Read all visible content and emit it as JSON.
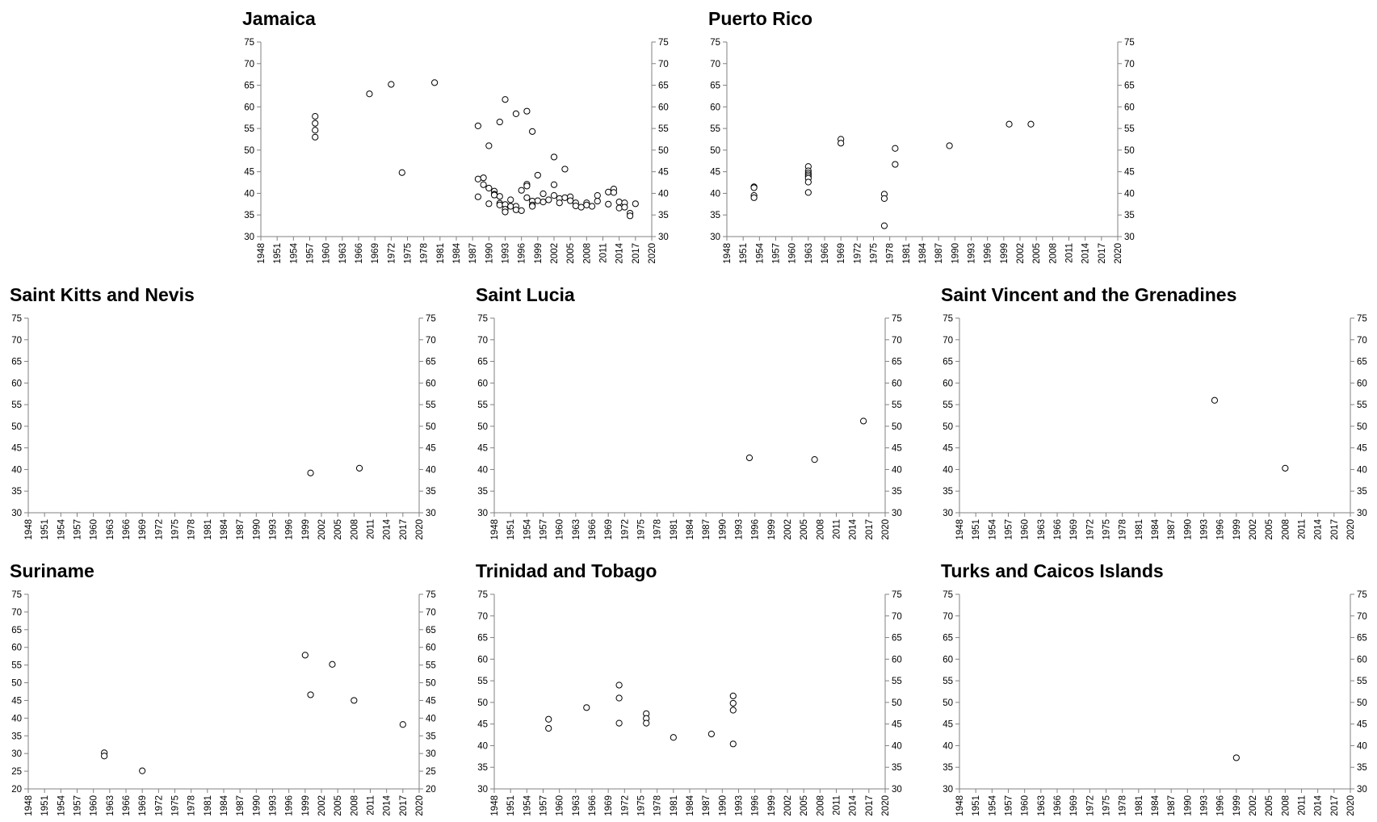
{
  "chart_data": [
    {
      "type": "scatter",
      "title": "Jamaica",
      "xlim": [
        1948,
        2020
      ],
      "x_ticks": [
        "1948",
        "1951",
        "1954",
        "1957",
        "1960",
        "1963",
        "1966",
        "1969",
        "1972",
        "1975",
        "1978",
        "1981",
        "1984",
        "1987",
        "1990",
        "1993",
        "1996",
        "1999",
        "2002",
        "2005",
        "2008",
        "2011",
        "2014",
        "2017",
        "2020"
      ],
      "ylim": [
        30,
        75
      ],
      "y_ticks": [
        "30",
        "35",
        "40",
        "45",
        "50",
        "55",
        "60",
        "65",
        "70",
        "75"
      ],
      "grid": false,
      "legend": "none",
      "marker": "hollow-circle",
      "series": [
        {
          "points": [
            [
              1958,
              57.8
            ],
            [
              1958,
              56.2
            ],
            [
              1958,
              54.6
            ],
            [
              1958,
              53.0
            ],
            [
              1968,
              63.0
            ],
            [
              1972,
              65.2
            ],
            [
              1974,
              44.8
            ],
            [
              1980,
              65.6
            ],
            [
              1988,
              55.6
            ],
            [
              1988,
              43.3
            ],
            [
              1988,
              39.2
            ],
            [
              1989,
              43.6
            ],
            [
              1989,
              42.0
            ],
            [
              1990,
              51.0
            ],
            [
              1990,
              41.2
            ],
            [
              1990,
              37.6
            ],
            [
              1991,
              40.5
            ],
            [
              1991,
              39.8
            ],
            [
              1991,
              39.6
            ],
            [
              1992,
              56.5
            ],
            [
              1992,
              39.3
            ],
            [
              1992,
              37.7
            ],
            [
              1992,
              37.3
            ],
            [
              1993,
              61.7
            ],
            [
              1993,
              37.4
            ],
            [
              1993,
              36.3
            ],
            [
              1993,
              35.7
            ],
            [
              1994,
              38.5
            ],
            [
              1994,
              37.0
            ],
            [
              1995,
              58.4
            ],
            [
              1995,
              37.0
            ],
            [
              1995,
              36.2
            ],
            [
              1996,
              40.7
            ],
            [
              1996,
              36.0
            ],
            [
              1997,
              59.0
            ],
            [
              1997,
              42.1
            ],
            [
              1997,
              41.7
            ],
            [
              1997,
              39.0
            ],
            [
              1998,
              54.3
            ],
            [
              1998,
              38.2
            ],
            [
              1998,
              37.3
            ],
            [
              1998,
              37.0
            ],
            [
              1999,
              44.2
            ],
            [
              1999,
              38.3
            ],
            [
              2000,
              39.9
            ],
            [
              2000,
              38.0
            ],
            [
              2001,
              38.5
            ],
            [
              2002,
              48.4
            ],
            [
              2002,
              42.0
            ],
            [
              2002,
              39.5
            ],
            [
              2003,
              38.8
            ],
            [
              2003,
              37.8
            ],
            [
              2004,
              45.6
            ],
            [
              2004,
              39.0
            ],
            [
              2005,
              39.2
            ],
            [
              2005,
              38.3
            ],
            [
              2006,
              37.8
            ],
            [
              2006,
              37.1
            ],
            [
              2007,
              36.8
            ],
            [
              2008,
              37.8
            ],
            [
              2008,
              37.3
            ],
            [
              2009,
              37.0
            ],
            [
              2010,
              39.5
            ],
            [
              2010,
              38.2
            ],
            [
              2012,
              40.3
            ],
            [
              2012,
              37.5
            ],
            [
              2013,
              41.0
            ],
            [
              2013,
              40.2
            ],
            [
              2014,
              38.0
            ],
            [
              2014,
              36.6
            ],
            [
              2015,
              37.8
            ],
            [
              2015,
              36.8
            ],
            [
              2016,
              35.4
            ],
            [
              2016,
              34.8
            ],
            [
              2017,
              37.6
            ]
          ]
        }
      ]
    },
    {
      "type": "scatter",
      "title": "Puerto Rico",
      "xlim": [
        1948,
        2020
      ],
      "x_ticks": [
        "1948",
        "1951",
        "1954",
        "1957",
        "1960",
        "1963",
        "1966",
        "1969",
        "1972",
        "1975",
        "1978",
        "1981",
        "1984",
        "1987",
        "1990",
        "1993",
        "1996",
        "1999",
        "2002",
        "2005",
        "2008",
        "2011",
        "2014",
        "2017",
        "2020"
      ],
      "ylim": [
        30,
        75
      ],
      "y_ticks": [
        "30",
        "35",
        "40",
        "45",
        "50",
        "55",
        "60",
        "65",
        "70",
        "75"
      ],
      "grid": false,
      "legend": "none",
      "marker": "hollow-circle",
      "series": [
        {
          "points": [
            [
              1953,
              41.5
            ],
            [
              1953,
              41.3
            ],
            [
              1953,
              39.5
            ],
            [
              1953,
              39.0
            ],
            [
              1963,
              46.2
            ],
            [
              1963,
              45.2
            ],
            [
              1963,
              44.7
            ],
            [
              1963,
              44.3
            ],
            [
              1963,
              43.9
            ],
            [
              1963,
              43.5
            ],
            [
              1963,
              42.6
            ],
            [
              1963,
              40.2
            ],
            [
              1969,
              52.5
            ],
            [
              1969,
              51.6
            ],
            [
              1977,
              39.8
            ],
            [
              1977,
              38.8
            ],
            [
              1977,
              32.5
            ],
            [
              1979,
              50.4
            ],
            [
              1979,
              46.7
            ],
            [
              1989,
              51.0
            ],
            [
              2000,
              56.0
            ],
            [
              2004,
              56.0
            ]
          ]
        }
      ]
    },
    {
      "type": "scatter",
      "title": "Saint Kitts and Nevis",
      "xlim": [
        1948,
        2020
      ],
      "x_ticks": [
        "1948",
        "1951",
        "1954",
        "1957",
        "1960",
        "1963",
        "1966",
        "1969",
        "1972",
        "1975",
        "1978",
        "1981",
        "1984",
        "1987",
        "1990",
        "1993",
        "1996",
        "1999",
        "2002",
        "2005",
        "2008",
        "2011",
        "2014",
        "2017",
        "2020"
      ],
      "ylim": [
        30,
        75
      ],
      "y_ticks": [
        "30",
        "35",
        "40",
        "45",
        "50",
        "55",
        "60",
        "65",
        "70",
        "75"
      ],
      "grid": false,
      "legend": "none",
      "marker": "hollow-circle",
      "series": [
        {
          "points": [
            [
              2000,
              39.2
            ],
            [
              2009,
              40.3
            ]
          ]
        }
      ]
    },
    {
      "type": "scatter",
      "title": "Saint Lucia",
      "xlim": [
        1948,
        2020
      ],
      "x_ticks": [
        "1948",
        "1951",
        "1954",
        "1957",
        "1960",
        "1963",
        "1966",
        "1969",
        "1972",
        "1975",
        "1978",
        "1981",
        "1984",
        "1987",
        "1990",
        "1993",
        "1996",
        "1999",
        "2002",
        "2005",
        "2008",
        "2011",
        "2014",
        "2017",
        "2020"
      ],
      "ylim": [
        30,
        75
      ],
      "y_ticks": [
        "30",
        "35",
        "40",
        "45",
        "50",
        "55",
        "60",
        "65",
        "70",
        "75"
      ],
      "grid": false,
      "legend": "none",
      "marker": "hollow-circle",
      "series": [
        {
          "points": [
            [
              1995,
              42.7
            ],
            [
              2007,
              42.3
            ],
            [
              2016,
              51.2
            ]
          ]
        }
      ]
    },
    {
      "type": "scatter",
      "title": "Saint Vincent and the Grenadines",
      "xlim": [
        1948,
        2020
      ],
      "x_ticks": [
        "1948",
        "1951",
        "1954",
        "1957",
        "1960",
        "1963",
        "1966",
        "1969",
        "1972",
        "1975",
        "1978",
        "1981",
        "1984",
        "1987",
        "1990",
        "1993",
        "1996",
        "1999",
        "2002",
        "2005",
        "2008",
        "2011",
        "2014",
        "2017",
        "2020"
      ],
      "ylim": [
        30,
        75
      ],
      "y_ticks": [
        "30",
        "35",
        "40",
        "45",
        "50",
        "55",
        "60",
        "65",
        "70",
        "75"
      ],
      "grid": false,
      "legend": "none",
      "marker": "hollow-circle",
      "series": [
        {
          "points": [
            [
              1995,
              56.0
            ],
            [
              2008,
              40.3
            ]
          ]
        }
      ]
    },
    {
      "type": "scatter",
      "title": "Suriname",
      "xlim": [
        1948,
        2020
      ],
      "x_ticks": [
        "1948",
        "1951",
        "1954",
        "1957",
        "1960",
        "1963",
        "1966",
        "1969",
        "1972",
        "1975",
        "1978",
        "1981",
        "1984",
        "1987",
        "1990",
        "1993",
        "1996",
        "1999",
        "2002",
        "2005",
        "2008",
        "2011",
        "2014",
        "2017",
        "2020"
      ],
      "ylim": [
        20,
        75
      ],
      "y_ticks": [
        "20",
        "25",
        "30",
        "35",
        "40",
        "45",
        "50",
        "55",
        "60",
        "65",
        "70",
        "75"
      ],
      "grid": false,
      "legend": "none",
      "marker": "hollow-circle",
      "series": [
        {
          "points": [
            [
              1962,
              30.2
            ],
            [
              1962,
              29.3
            ],
            [
              1969,
              25.1
            ],
            [
              1999,
              57.8
            ],
            [
              2000,
              46.6
            ],
            [
              2004,
              55.2
            ],
            [
              2008,
              45.0
            ],
            [
              2017,
              38.2
            ]
          ]
        }
      ]
    },
    {
      "type": "scatter",
      "title": "Trinidad and Tobago",
      "xlim": [
        1948,
        2020
      ],
      "x_ticks": [
        "1948",
        "1951",
        "1954",
        "1957",
        "1960",
        "1963",
        "1966",
        "1969",
        "1972",
        "1975",
        "1978",
        "1981",
        "1984",
        "1987",
        "1990",
        "1993",
        "1996",
        "1999",
        "2002",
        "2005",
        "2008",
        "2011",
        "2014",
        "2017",
        "2020"
      ],
      "ylim": [
        30,
        75
      ],
      "y_ticks": [
        "30",
        "35",
        "40",
        "45",
        "50",
        "55",
        "60",
        "65",
        "70",
        "75"
      ],
      "grid": false,
      "legend": "none",
      "marker": "hollow-circle",
      "series": [
        {
          "points": [
            [
              1958,
              46.1
            ],
            [
              1958,
              44.0
            ],
            [
              1965,
              48.8
            ],
            [
              1971,
              54.0
            ],
            [
              1971,
              51.0
            ],
            [
              1971,
              45.2
            ],
            [
              1976,
              47.4
            ],
            [
              1976,
              46.3
            ],
            [
              1976,
              45.2
            ],
            [
              1981,
              41.9
            ],
            [
              1988,
              42.7
            ],
            [
              1992,
              51.5
            ],
            [
              1992,
              49.8
            ],
            [
              1992,
              48.2
            ],
            [
              1992,
              40.4
            ]
          ]
        }
      ]
    },
    {
      "type": "scatter",
      "title": "Turks and Caicos Islands",
      "xlim": [
        1948,
        2020
      ],
      "x_ticks": [
        "1948",
        "1951",
        "1954",
        "1957",
        "1960",
        "1963",
        "1966",
        "1969",
        "1972",
        "1975",
        "1978",
        "1981",
        "1984",
        "1987",
        "1990",
        "1993",
        "1996",
        "1999",
        "2002",
        "2005",
        "2008",
        "2011",
        "2014",
        "2017",
        "2020"
      ],
      "ylim": [
        30,
        75
      ],
      "y_ticks": [
        "30",
        "35",
        "40",
        "45",
        "50",
        "55",
        "60",
        "65",
        "70",
        "75"
      ],
      "grid": false,
      "legend": "none",
      "marker": "hollow-circle",
      "series": [
        {
          "points": [
            [
              1999,
              37.2
            ]
          ]
        }
      ]
    }
  ]
}
